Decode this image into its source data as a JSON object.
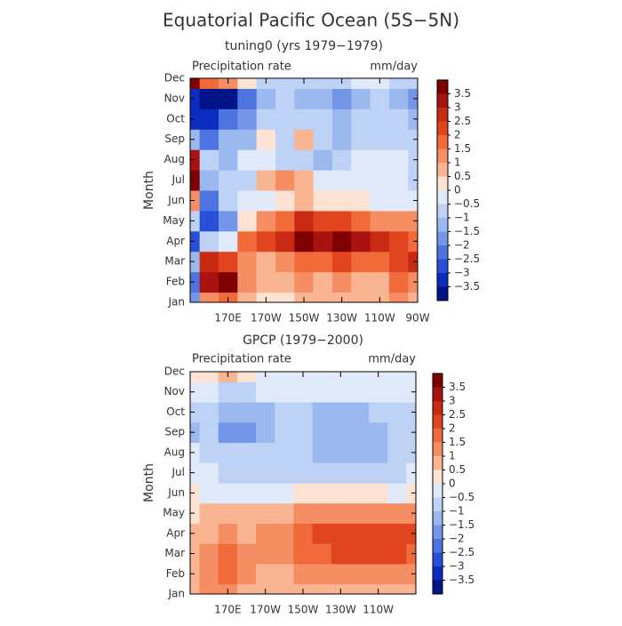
{
  "title": "Equatorial Pacific Ocean (5S−5N)",
  "chart_data": [
    {
      "type": "heatmap",
      "title": "tuning0 (yrs 1979−1979)",
      "left_label": "Precipitation rate",
      "right_label": "mm/day",
      "ylabel": "Month",
      "y_categories": [
        "Jan",
        "Feb",
        "Mar",
        "Apr",
        "May",
        "Jun",
        "Jul",
        "Aug",
        "Sep",
        "Oct",
        "Nov",
        "Dec"
      ],
      "x": [
        150,
        160,
        170,
        180,
        190,
        200,
        210,
        220,
        230,
        240,
        250,
        260,
        270
      ],
      "xlim": [
        150,
        270
      ],
      "xticks": [
        {
          "value": 170,
          "label": "170E"
        },
        {
          "value": 190,
          "label": "170W"
        },
        {
          "value": 210,
          "label": "150W"
        },
        {
          "value": 230,
          "label": "130W"
        },
        {
          "value": 250,
          "label": "110W"
        },
        {
          "value": 270,
          "label": "90W"
        }
      ],
      "z": [
        [
          -2,
          1,
          1.5,
          0.5,
          0,
          0,
          0.5,
          0.5,
          0.5,
          0.5,
          0.5,
          1,
          0.5
        ],
        [
          -2.5,
          3,
          3.5,
          1,
          0.5,
          0.5,
          1,
          0.5,
          1,
          0.5,
          0.5,
          1.5,
          1
        ],
        [
          -1.5,
          2.5,
          2,
          1,
          0.5,
          1,
          1.5,
          1.5,
          2,
          1.5,
          1.5,
          2,
          2.5
        ],
        [
          -3,
          -1,
          -0.5,
          1.5,
          2,
          2.5,
          3.5,
          3,
          4,
          3,
          2.5,
          2,
          1.5
        ],
        [
          -1,
          -3,
          -2,
          0,
          1,
          1.5,
          2.5,
          2,
          2,
          1.5,
          1,
          1,
          1
        ],
        [
          1,
          -2.5,
          -1,
          -0.5,
          -0.5,
          0,
          0.5,
          0,
          0,
          0,
          -0.5,
          -0.5,
          -0.5
        ],
        [
          3.5,
          -1.5,
          -1,
          -1,
          0.5,
          1,
          0.5,
          -0.5,
          -0.5,
          -0.5,
          -0.5,
          -0.5,
          -1
        ],
        [
          3,
          -1,
          -1.5,
          -0.5,
          -0.5,
          -1,
          -1,
          -1.5,
          -1,
          -0.5,
          -0.5,
          -0.5,
          -1
        ],
        [
          -1.5,
          -2.5,
          -1.5,
          -1.5,
          0,
          -1,
          0.5,
          -1,
          -1.5,
          -1,
          -1,
          -1,
          -1
        ],
        [
          -3.5,
          -3.5,
          -2.5,
          -2,
          -1,
          -1,
          -1,
          -1,
          -1.5,
          -1,
          -1,
          -1,
          -1.5
        ],
        [
          -3.5,
          -4,
          -4,
          -2.5,
          -1.5,
          -1,
          -1.5,
          -1.5,
          -2,
          -1.5,
          -1,
          -1.5,
          -2
        ],
        [
          4,
          1.5,
          1,
          0,
          -1,
          -1,
          -1,
          -1,
          -1,
          -0.5,
          -0.5,
          -1,
          -1
        ]
      ],
      "colorbar_ticks": [
        3.5,
        3,
        2.5,
        2,
        1.5,
        1,
        0.5,
        0,
        {
          "value": -0.5,
          "label": "−0.5"
        },
        {
          "value": -1,
          "label": "−1"
        },
        {
          "value": -1.5,
          "label": "−1.5"
        },
        {
          "value": -2,
          "label": "−2"
        },
        {
          "value": -2.5,
          "label": "−2.5"
        },
        {
          "value": -3,
          "label": "−3"
        },
        {
          "value": -3.5,
          "label": "−3.5"
        }
      ],
      "colors": [
        "#7f0000",
        "#a8120f",
        "#c82a14",
        "#e0451f",
        "#f06a3a",
        "#f58e62",
        "#f9b592",
        "#fde3d3",
        "#e0eafa",
        "#bed2f6",
        "#9bb8ef",
        "#7396e8",
        "#4d74e0",
        "#2850d6",
        "#0c2cc0",
        "#001487"
      ]
    },
    {
      "type": "heatmap",
      "title": "GPCP (1979−2000)",
      "left_label": "Precipitation rate",
      "right_label": "mm/day",
      "ylabel": "Month",
      "y_categories": [
        "Jan",
        "Feb",
        "Mar",
        "Apr",
        "May",
        "Jun",
        "Jul",
        "Aug",
        "Sep",
        "Oct",
        "Nov",
        "Dec"
      ],
      "x": [
        150,
        160,
        170,
        180,
        190,
        200,
        210,
        220,
        230,
        240,
        250,
        260,
        270
      ],
      "xlim": [
        150,
        270
      ],
      "xticks": [
        {
          "value": 170,
          "label": "170E"
        },
        {
          "value": 190,
          "label": "170W"
        },
        {
          "value": 210,
          "label": "150W"
        },
        {
          "value": 230,
          "label": "130W"
        },
        {
          "value": 250,
          "label": "110W"
        }
      ],
      "z": [
        [
          0.5,
          1,
          1,
          0.5,
          0.5,
          0.5,
          0.5,
          0.5,
          0.5,
          0.5,
          0.5,
          0.5,
          0.5
        ],
        [
          0.5,
          1,
          1.5,
          1,
          0.5,
          0.5,
          1,
          1,
          1,
          1,
          1,
          1,
          1
        ],
        [
          0.5,
          1,
          1.5,
          1,
          1,
          1,
          1.5,
          1.5,
          2,
          2,
          2,
          2,
          1.5
        ],
        [
          0.5,
          0.5,
          1,
          0.5,
          1,
          1,
          1.5,
          2,
          2,
          2,
          2,
          2,
          2
        ],
        [
          0,
          0.5,
          0.5,
          0.5,
          0.5,
          0.5,
          1,
          1,
          1,
          1,
          1,
          1,
          1
        ],
        [
          0,
          -0.5,
          -0.5,
          -0.5,
          -0.5,
          -0.5,
          0,
          0,
          0,
          0,
          0,
          -0.5,
          0
        ],
        [
          -0.5,
          -0.5,
          -1,
          -1,
          -1,
          -1,
          -1,
          -1,
          -1,
          -1,
          -1,
          -1,
          -0.5
        ],
        [
          -0.5,
          -1,
          -1,
          -1,
          -1,
          -1,
          -1,
          -1.5,
          -1.5,
          -1.5,
          -1.5,
          -1,
          -1
        ],
        [
          -1.5,
          -1,
          -2,
          -2,
          -1.5,
          -1,
          -1,
          -1.5,
          -1.5,
          -1.5,
          -1.5,
          -1,
          -1
        ],
        [
          -1,
          -1,
          -1.5,
          -1.5,
          -1.5,
          -1,
          -1,
          -1.5,
          -1.5,
          -1.5,
          -1,
          -1,
          -1
        ],
        [
          -0.5,
          -0.5,
          -1,
          -1,
          -0.5,
          -0.5,
          -0.5,
          -0.5,
          -0.5,
          -0.5,
          -0.5,
          -0.5,
          -0.5
        ],
        [
          0,
          0,
          0.5,
          0,
          -0.5,
          -0.5,
          -0.5,
          -0.5,
          -0.5,
          -0.5,
          -0.5,
          -0.5,
          -0.5
        ]
      ],
      "colorbar_ticks": [
        3.5,
        3,
        2.5,
        2,
        1.5,
        1,
        0.5,
        0,
        {
          "value": -0.5,
          "label": "−0.5"
        },
        {
          "value": -1,
          "label": "−1"
        },
        {
          "value": -1.5,
          "label": "−1.5"
        },
        {
          "value": -2,
          "label": "−2"
        },
        {
          "value": -2.5,
          "label": "−2.5"
        },
        {
          "value": -3,
          "label": "−3"
        },
        {
          "value": -3.5,
          "label": "−3.5"
        }
      ],
      "colors": [
        "#7f0000",
        "#a8120f",
        "#c82a14",
        "#e0451f",
        "#f06a3a",
        "#f58e62",
        "#f9b592",
        "#fde3d3",
        "#e0eafa",
        "#bed2f6",
        "#9bb8ef",
        "#7396e8",
        "#4d74e0",
        "#2850d6",
        "#0c2cc0",
        "#001487"
      ]
    }
  ]
}
